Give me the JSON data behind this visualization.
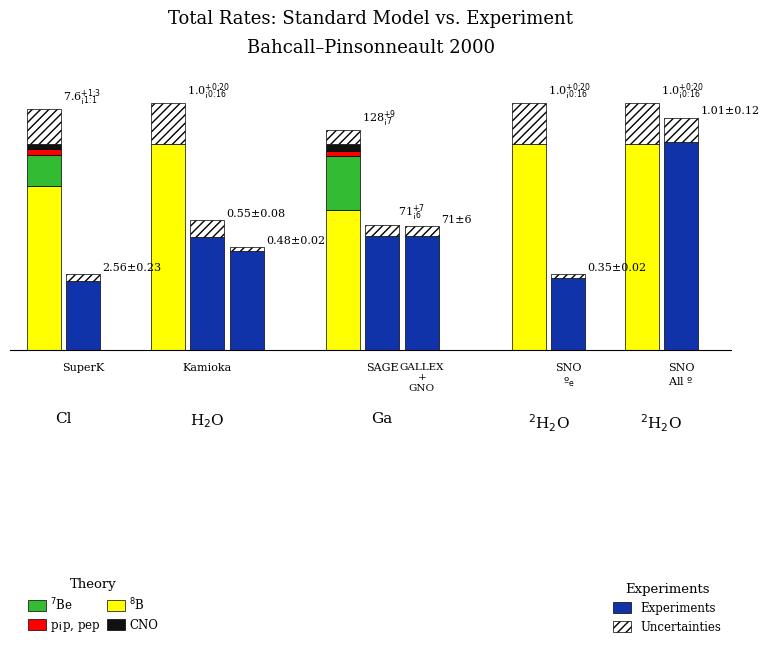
{
  "title1": "Total Rates: Standard Model vs. Experiment",
  "title2": "Bahcall–Pinsonneault 2000",
  "color_8B": "#FFFF00",
  "color_7Be": "#33BB33",
  "color_pep": "#FF0000",
  "color_CNO": "#111111",
  "color_exp": "#1133AA",
  "bg_color": "#FFFFFF",
  "theory_label": [
    "7.6$^{+1.3}_{-1.1}$",
    "1.0$^{+0.20}_{-0.16}$",
    "128$^{+9}_{-7}$",
    "1.0$^{+0.20}_{-0.16}$",
    "1.0$^{+0.20}_{-0.16}$"
  ],
  "exp_label_cl": "2.56±0.23",
  "exp_label_h2o": "0.55±0.08",
  "exp_label_h2o2": "0.48±0.02",
  "exp_label_ga1": "71$^{+7}_{-6}$",
  "exp_label_ga2": "71±6",
  "exp_label_d2o1": "0.35±0.02",
  "exp_label_d2o2": "1.01±0.12"
}
